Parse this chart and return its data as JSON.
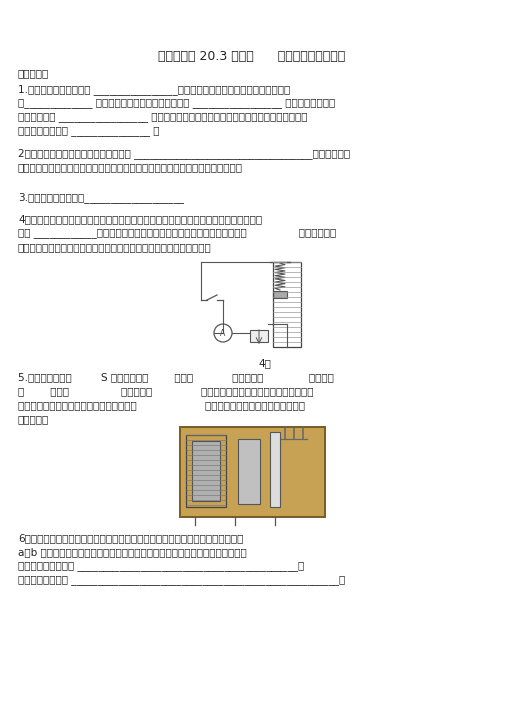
{
  "title": "九年级物理 20.3 电磁铁      电磁继电器同步练习",
  "section1": "一、填空题",
  "q1_line1": "1.内部带铁心的螺线管叫 ________________，电磁铁的优点很多，它的磁性有无可以",
  "q1_line2": "由_____________ 来控制；电磁铁的磁性强弱可以由 _________________ 来控制；电磁铁的",
  "q1_line3": "南北极可以由 _________________ 来控制，使用起来较方便，在电流一定时，螺线管的匝数",
  "q1_line4": "越多，它的磁性越 _______________ 。",
  "q2_line1": "2、电磁铁与普通磁铁相比的突出优点是 __________________________________（写出一个即",
  "q2_line2": "可）。电磁铁在生产和生活中的应用很多，在电炉、电铃、电灯中，用到电磁铁的",
  "q3_line1": "3.电磁继电器的优点：___________________",
  "q4_line1": "4、某同学的实验装置如题图所示，弹簧下端吊的是铁块，当此将开关闭合以后，弹簧的",
  "q4_line2": "长度 ____________；当他将滑动变阻器的滑片向左滑动时，电流表的示数                ，弹簧的长度",
  "q4_line3": "；如果其他条件不变，仅只是将电源的正负极调换了一下，发生变化的",
  "fig4_label": "4题",
  "q5_line1": "5.控制电路的开关         S 闭合，电磁铁        磁性，            衔铁、触点              分离、触",
  "q5_line2": "占        报触，                停止工作，               开始工作；如果右边的工作电路是高压电",
  "q5_line3": "路，就可以实现利用控制低压电路的通断来                     （填：直接或间接）控制高压工作电",
  "q5_line4": "路的通断。",
  "q6_line1": "6、如图是研究电磁铁的磁性强弱与哪些因素有关的实验示意图，小明同学选择了",
  "q6_line2": "a、b 两个电磁铁进行了甲、乙、丙三次实验，电磁铁吸引钉的情况如题图所示，",
  "q6_line3": "由图甲，乙可以得出 __________________________________________；",
  "q6_line4": "比较图丙可以得出 ___________________________________________________。",
  "bg_color": "#ffffff",
  "text_color": "#333333",
  "font_size_title": 9,
  "font_size_body": 7.5
}
